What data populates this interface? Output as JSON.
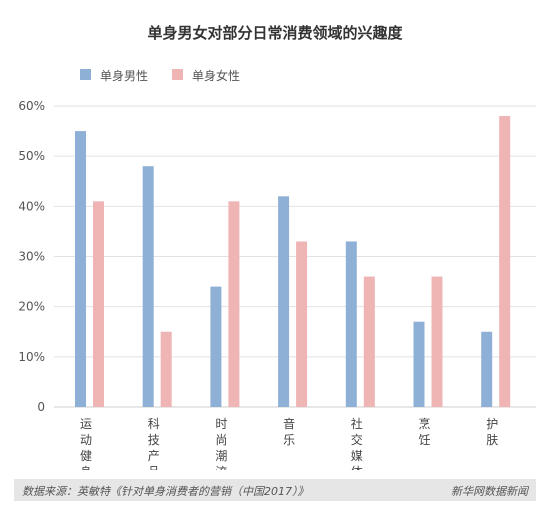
{
  "chart_data": {
    "type": "bar",
    "title": "单身男女对部分日常消费领域的兴趣度",
    "categories": [
      "运动健身",
      "科技产品",
      "时尚潮流",
      "音乐",
      "社交媒体",
      "烹饪",
      "护肤"
    ],
    "series": [
      {
        "name": "单身男性",
        "color": "#8fb0d6",
        "values": [
          55,
          48,
          24,
          42,
          33,
          17,
          15
        ]
      },
      {
        "name": "单身女性",
        "color": "#efb4b4",
        "values": [
          41,
          15,
          41,
          33,
          26,
          26,
          58
        ]
      }
    ],
    "ylim": [
      0,
      60
    ],
    "yticks": [
      "0",
      "10%",
      "20%",
      "30%",
      "40%",
      "50%",
      "60%"
    ],
    "grid": true,
    "legend_position": "top-left"
  },
  "footer": {
    "source": "数据来源：英敏特《针对单身消费者的营销（中国2017）》",
    "brand": "新华网数据新闻"
  }
}
